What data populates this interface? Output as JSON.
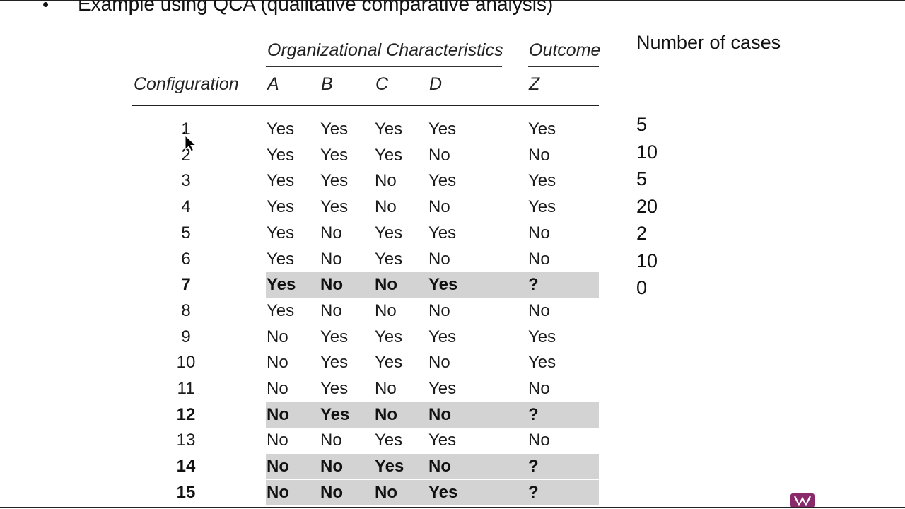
{
  "slide": {
    "bullet_glyph": "•",
    "bullet_text": "Example using QCA (qualitative comparative analysis)"
  },
  "table": {
    "group_header": "Organizational Characteristics",
    "outcome_header": "Outcome",
    "config_header": "Configuration",
    "col_a": "A",
    "col_b": "B",
    "col_c": "C",
    "col_d": "D",
    "col_z": "Z",
    "rows": [
      {
        "cfg": "1",
        "a": "Yes",
        "b": "Yes",
        "c": "Yes",
        "d": "Yes",
        "z": "Yes"
      },
      {
        "cfg": "2",
        "a": "Yes",
        "b": "Yes",
        "c": "Yes",
        "d": "No",
        "z": "No"
      },
      {
        "cfg": "3",
        "a": "Yes",
        "b": "Yes",
        "c": "No",
        "d": "Yes",
        "z": "Yes"
      },
      {
        "cfg": "4",
        "a": "Yes",
        "b": "Yes",
        "c": "No",
        "d": "No",
        "z": "Yes"
      },
      {
        "cfg": "5",
        "a": "Yes",
        "b": "No",
        "c": "Yes",
        "d": "Yes",
        "z": "No"
      },
      {
        "cfg": "6",
        "a": "Yes",
        "b": "No",
        "c": "Yes",
        "d": "No",
        "z": "No"
      },
      {
        "cfg": "7",
        "a": "Yes",
        "b": "No",
        "c": "No",
        "d": "Yes",
        "z": "?"
      },
      {
        "cfg": "8",
        "a": "Yes",
        "b": "No",
        "c": "No",
        "d": "No",
        "z": "No"
      },
      {
        "cfg": "9",
        "a": "No",
        "b": "Yes",
        "c": "Yes",
        "d": "Yes",
        "z": "Yes"
      },
      {
        "cfg": "10",
        "a": "No",
        "b": "Yes",
        "c": "Yes",
        "d": "No",
        "z": "Yes"
      },
      {
        "cfg": "11",
        "a": "No",
        "b": "Yes",
        "c": "No",
        "d": "Yes",
        "z": "No"
      },
      {
        "cfg": "12",
        "a": "No",
        "b": "Yes",
        "c": "No",
        "d": "No",
        "z": "?"
      },
      {
        "cfg": "13",
        "a": "No",
        "b": "No",
        "c": "Yes",
        "d": "Yes",
        "z": "No"
      },
      {
        "cfg": "14",
        "a": "No",
        "b": "No",
        "c": "Yes",
        "d": "No",
        "z": "?"
      },
      {
        "cfg": "15",
        "a": "No",
        "b": "No",
        "c": "No",
        "d": "Yes",
        "z": "?"
      }
    ],
    "highlighted_rows": [
      "7",
      "12",
      "14",
      "15"
    ]
  },
  "cases": {
    "title": "Number of cases",
    "values": [
      "5",
      "10",
      "5",
      "20",
      "2",
      "10",
      "0"
    ]
  },
  "colors": {
    "highlight": "#d3d3d3",
    "text": "#111111",
    "logo": "#8a2a6a"
  },
  "icons": {
    "cursor": "move-cursor-icon",
    "logo": "app-logo-icon"
  }
}
